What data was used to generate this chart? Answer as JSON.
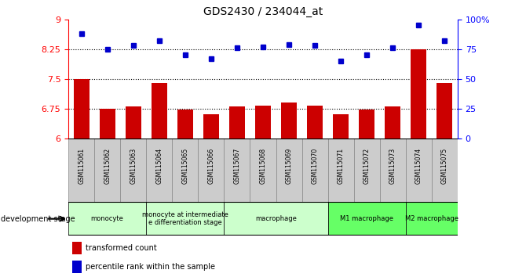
{
  "title": "GDS2430 / 234044_at",
  "categories": [
    "GSM115061",
    "GSM115062",
    "GSM115063",
    "GSM115064",
    "GSM115065",
    "GSM115066",
    "GSM115067",
    "GSM115068",
    "GSM115069",
    "GSM115070",
    "GSM115071",
    "GSM115072",
    "GSM115073",
    "GSM115074",
    "GSM115075"
  ],
  "bar_values": [
    7.5,
    6.75,
    6.8,
    7.4,
    6.72,
    6.62,
    6.8,
    6.82,
    6.9,
    6.82,
    6.62,
    6.72,
    6.8,
    8.25,
    7.4
  ],
  "dot_values": [
    88,
    75,
    78,
    82,
    70,
    67,
    76,
    77,
    79,
    78,
    65,
    70,
    76,
    95,
    82
  ],
  "bar_color": "#cc0000",
  "dot_color": "#0000cc",
  "ylim_left": [
    6,
    9
  ],
  "ylim_right": [
    0,
    100
  ],
  "yticks_left": [
    6,
    6.75,
    7.5,
    8.25,
    9
  ],
  "yticks_right": [
    0,
    25,
    50,
    75,
    100
  ],
  "yticklabels_left": [
    "6",
    "6.75",
    "7.5",
    "8.25",
    "9"
  ],
  "yticklabels_right": [
    "0",
    "25",
    "50",
    "75",
    "100%"
  ],
  "hlines": [
    6.75,
    7.5,
    8.25
  ],
  "stage_spans": [
    {
      "label": "monocyte",
      "cols": [
        0,
        1,
        2
      ],
      "color": "#ccffcc"
    },
    {
      "label": "monocyte at intermediate\ne differentiation stage",
      "cols": [
        3,
        4,
        5
      ],
      "color": "#ccffcc"
    },
    {
      "label": "macrophage",
      "cols": [
        6,
        7,
        8,
        9
      ],
      "color": "#ccffcc"
    },
    {
      "label": "M1 macrophage",
      "cols": [
        10,
        11,
        12
      ],
      "color": "#66ff66"
    },
    {
      "label": "M2 macrophage",
      "cols": [
        13,
        14
      ],
      "color": "#66ff66"
    }
  ],
  "gsm_bg_color": "#cccccc",
  "legend_labels": [
    "transformed count",
    "percentile rank within the sample"
  ]
}
